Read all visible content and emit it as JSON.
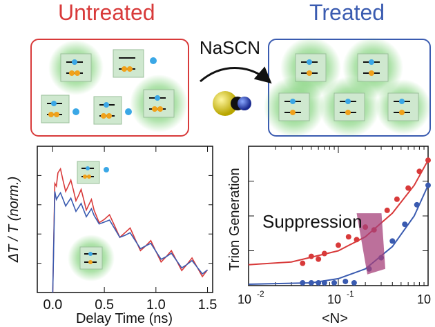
{
  "header": {
    "untreated_title": "Untreated",
    "treated_title": "Treated",
    "reagent": "NaSCN"
  },
  "colors": {
    "untreated": "#d83a3a",
    "treated": "#3a5bb0",
    "glow": "#53c24a",
    "cube": "#cfe8cf",
    "electron": "#3aa7e6",
    "hole": "#f0a11a"
  },
  "left_plot": {
    "ylabel": "ΔT / T (norm.)",
    "xlabel": "Delay Time (ns)",
    "x_ticks": [
      "0.0",
      "0.5",
      "1.0",
      "1.5"
    ]
  },
  "right_plot": {
    "ylabel": "Trion Generation",
    "xlabel": "<N>",
    "x_ticks": [
      "10",
      "10",
      "10"
    ],
    "x_tick_exps": [
      "-2",
      "-1",
      "0"
    ],
    "annotation": "Suppression"
  },
  "chart_data": [
    {
      "type": "line",
      "xlabel": "Delay Time (ns)",
      "ylabel": "ΔT / T (norm.)",
      "xlim": [
        -0.15,
        1.55
      ],
      "ylim": [
        0,
        1.1
      ],
      "x_ticks": [
        0.0,
        0.5,
        1.0,
        1.5
      ],
      "series": [
        {
          "color": "#d83a3a",
          "x": [
            0.0,
            0.02,
            0.05,
            0.1,
            0.15,
            0.2,
            0.25,
            0.3,
            0.35,
            0.4,
            0.5,
            0.6,
            0.7,
            0.8,
            0.9,
            1.0,
            1.1,
            1.2,
            1.3,
            1.4,
            1.5
          ],
          "y": [
            0.0,
            0.82,
            0.9,
            0.84,
            0.8,
            0.77,
            0.73,
            0.7,
            0.66,
            0.62,
            0.55,
            0.5,
            0.45,
            0.4,
            0.35,
            0.31,
            0.27,
            0.24,
            0.21,
            0.19,
            0.17
          ]
        },
        {
          "color": "#3a5bb0",
          "x": [
            0.0,
            0.02,
            0.05,
            0.1,
            0.15,
            0.2,
            0.25,
            0.3,
            0.35,
            0.4,
            0.5,
            0.6,
            0.7,
            0.8,
            0.9,
            1.0,
            1.1,
            1.2,
            1.3,
            1.4,
            1.5
          ],
          "y": [
            0.0,
            0.76,
            0.72,
            0.7,
            0.68,
            0.66,
            0.64,
            0.62,
            0.6,
            0.58,
            0.53,
            0.48,
            0.43,
            0.39,
            0.35,
            0.31,
            0.27,
            0.24,
            0.21,
            0.19,
            0.17
          ]
        }
      ]
    },
    {
      "type": "scatter",
      "xlabel": "<N>",
      "ylabel": "Trion Generation",
      "x_scale": "log",
      "xlim": [
        0.01,
        1.0
      ],
      "ylim": [
        0,
        1.0
      ],
      "series": [
        {
          "color": "#d83a3a",
          "points": [
            [
              0.04,
              0.16
            ],
            [
              0.05,
              0.21
            ],
            [
              0.06,
              0.19
            ],
            [
              0.07,
              0.23
            ],
            [
              0.1,
              0.29
            ],
            [
              0.13,
              0.35
            ],
            [
              0.16,
              0.33
            ],
            [
              0.2,
              0.42
            ],
            [
              0.25,
              0.4
            ],
            [
              0.35,
              0.54
            ],
            [
              0.45,
              0.62
            ],
            [
              0.6,
              0.7
            ],
            [
              0.8,
              0.82
            ],
            [
              1.0,
              0.9
            ]
          ],
          "fit": [
            [
              0.01,
              0.15
            ],
            [
              0.03,
              0.17
            ],
            [
              0.1,
              0.25
            ],
            [
              0.2,
              0.35
            ],
            [
              0.4,
              0.52
            ],
            [
              0.7,
              0.72
            ],
            [
              1.0,
              0.9
            ]
          ]
        },
        {
          "color": "#3a5bb0",
          "points": [
            [
              0.04,
              0.02
            ],
            [
              0.05,
              0.02
            ],
            [
              0.06,
              0.02
            ],
            [
              0.07,
              0.02
            ],
            [
              0.09,
              0.02
            ],
            [
              0.12,
              0.03
            ],
            [
              0.15,
              0.02
            ],
            [
              0.22,
              0.12
            ],
            [
              0.3,
              0.2
            ],
            [
              0.4,
              0.32
            ],
            [
              0.55,
              0.44
            ],
            [
              0.75,
              0.58
            ],
            [
              1.0,
              0.72
            ]
          ],
          "fit": [
            [
              0.01,
              0.01
            ],
            [
              0.05,
              0.02
            ],
            [
              0.1,
              0.05
            ],
            [
              0.2,
              0.12
            ],
            [
              0.4,
              0.28
            ],
            [
              0.7,
              0.5
            ],
            [
              1.0,
              0.72
            ]
          ]
        }
      ]
    }
  ]
}
